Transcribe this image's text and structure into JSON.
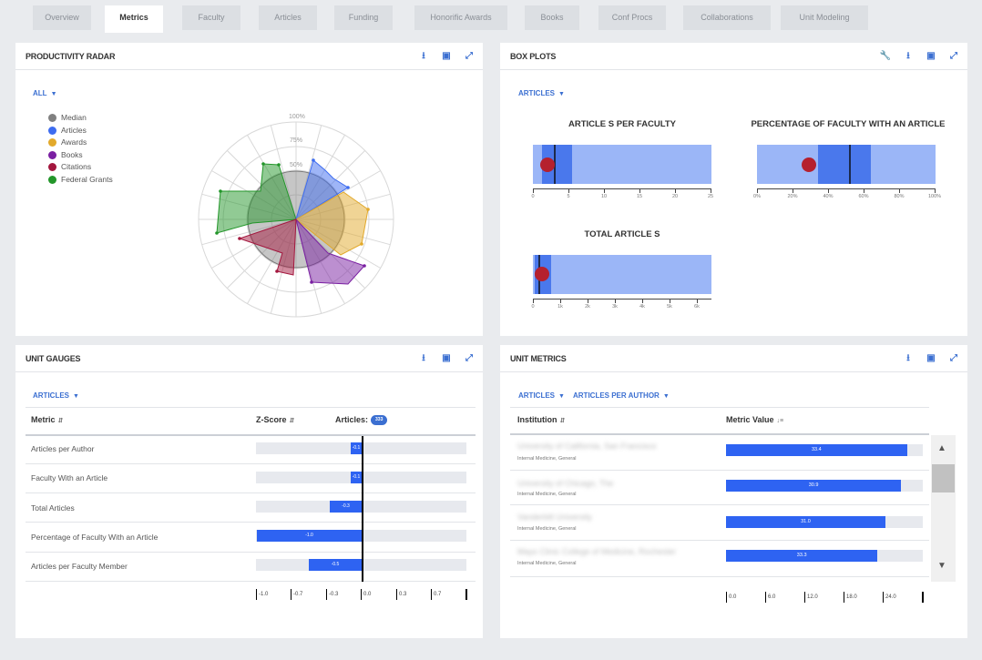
{
  "tabs": [
    "Overview",
    "Metrics",
    "Faculty",
    "Articles",
    "Funding",
    "Honorific Awards",
    "Books",
    "Conf Procs",
    "Collaborations",
    "Unit Modeling"
  ],
  "active_tab": "Metrics",
  "radar_panel": {
    "title": "PRODUCTIVITY RADAR",
    "filter": "ALL",
    "legend": [
      {
        "label": "Median",
        "color": "#808080"
      },
      {
        "label": "Articles",
        "color": "#3d6cf0"
      },
      {
        "label": "Awards",
        "color": "#e2a92b"
      },
      {
        "label": "Books",
        "color": "#7a1fa2"
      },
      {
        "label": "Citations",
        "color": "#a3173e"
      },
      {
        "label": "Federal Grants",
        "color": "#23962a"
      }
    ],
    "ring_labels": [
      "100%",
      "75%",
      "50%"
    ]
  },
  "boxplot_panel": {
    "title": "BOX PLOTS",
    "filter": "ARTICLES",
    "plots": [
      {
        "title": "ARTICLE S PER FACULTY",
        "ticks": [
          "0",
          "5",
          "10",
          "15",
          "20",
          "25"
        ]
      },
      {
        "title": "PERCENTAGE OF FACULTY WITH AN ARTICLE",
        "ticks": [
          "0%",
          "20%",
          "40%",
          "60%",
          "80%",
          "100%"
        ]
      },
      {
        "title": "TOTAL ARTICLE S",
        "ticks": [
          "0",
          "1k",
          "2k",
          "3k",
          "4k",
          "5k",
          "6k"
        ]
      }
    ]
  },
  "gauges_panel": {
    "title": "UNIT GAUGES",
    "filter": "ARTICLES",
    "col_metric": "Metric",
    "col_zscore": "Z-Score",
    "col_articles": "Articles:",
    "articles_badge": "333",
    "rows": [
      {
        "label": "Articles per Author",
        "value": "-0.1"
      },
      {
        "label": "Faculty With an Article",
        "value": "-0.1"
      },
      {
        "label": "Total Articles",
        "value": "-0.3"
      },
      {
        "label": "Percentage of Faculty With an Article",
        "value": "-1.0"
      },
      {
        "label": "Articles per Faculty Member",
        "value": "-0.5"
      }
    ],
    "axis": [
      "-1.0",
      "-0.7",
      "-0.3",
      "0.0",
      "0.3",
      "0.7"
    ]
  },
  "metrics_panel": {
    "title": "UNIT METRICS",
    "filter1": "ARTICLES",
    "filter2": "ARTICLES PER AUTHOR",
    "col_institution": "Institution",
    "col_metric": "Metric Value",
    "rows": [
      {
        "name": "University of California, San Francisco",
        "sub": "Internal Medicine, General",
        "value": "33.4",
        "fraction": 0.92
      },
      {
        "name": "University of Chicago, The",
        "sub": "Internal Medicine, General",
        "value": "30.9",
        "fraction": 0.89
      },
      {
        "name": "Vanderbilt University",
        "sub": "Internal Medicine, General",
        "value": "31.0",
        "fraction": 0.81
      },
      {
        "name": "Mayo Clinic College of Medicine, Rochester",
        "sub": "Internal Medicine, General",
        "value": "33.3",
        "fraction": 0.77
      }
    ],
    "axis": [
      "0.0",
      "6.0",
      "12.0",
      "18.0",
      "24.0"
    ]
  }
}
